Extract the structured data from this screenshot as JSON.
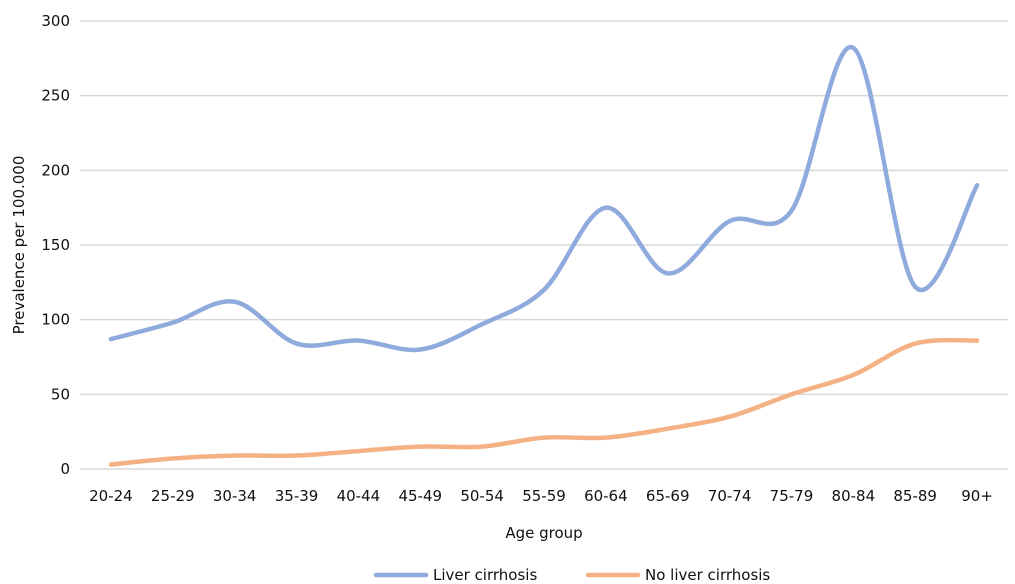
{
  "chart_data": {
    "type": "line",
    "smooth": true,
    "xlabel": "Age group",
    "ylabel": "Prevalence per 100.000",
    "ylim": [
      0,
      300
    ],
    "yticks": [
      0,
      50,
      100,
      150,
      200,
      250,
      300
    ],
    "grid": true,
    "legend_position": "bottom-center",
    "categories": [
      "20-24",
      "25-29",
      "30-34",
      "35-39",
      "40-44",
      "45-49",
      "50-54",
      "55-59",
      "60-64",
      "65-69",
      "70-74",
      "75-79",
      "80-84",
      "85-89",
      "90+"
    ],
    "series": [
      {
        "name": "Liver cirrhosis",
        "color": "#8faadc",
        "values": [
          87,
          98,
          112,
          84,
          86,
          80,
          97,
          120,
          175,
          131,
          166,
          173,
          282,
          122,
          190
        ]
      },
      {
        "name": "No liver cirrhosis",
        "color": "#f4b183",
        "values": [
          3,
          7,
          9,
          9,
          12,
          15,
          15,
          21,
          21,
          27,
          35,
          50,
          63,
          84,
          86
        ]
      }
    ]
  }
}
